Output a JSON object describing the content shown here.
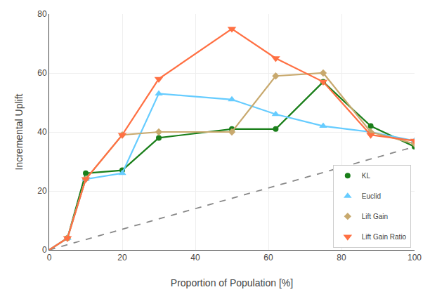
{
  "chart_data": {
    "type": "line",
    "xlabel": "Proportion of Population [%]",
    "ylabel": "Incremental Uplift",
    "xlim": [
      0,
      100
    ],
    "ylim": [
      0,
      80
    ],
    "xticks": [
      0,
      20,
      40,
      60,
      80,
      100
    ],
    "yticks": [
      0,
      20,
      40,
      60,
      80
    ],
    "grid": true,
    "legend": "lower right",
    "series": [
      {
        "color": "#888888",
        "line_style": "dashed",
        "x": [
          0,
          100
        ],
        "values": [
          0,
          35
        ]
      },
      {
        "name": "KL",
        "color": "#1a7f1a",
        "marker": "circle",
        "x": [
          0,
          5,
          10,
          20,
          30,
          50,
          62,
          75,
          88,
          100
        ],
        "values": [
          0,
          4,
          26,
          27,
          38,
          41,
          41,
          57,
          42,
          35
        ]
      },
      {
        "name": "Euclid",
        "color": "#66ccff",
        "marker": "triangle-up",
        "x": [
          0,
          5,
          10,
          20,
          30,
          50,
          62,
          75,
          88,
          100
        ],
        "values": [
          0,
          4,
          24,
          26,
          53,
          51,
          46,
          42,
          40,
          37
        ]
      },
      {
        "name": "Lift Gain",
        "color": "#c8a96e",
        "marker": "diamond",
        "x": [
          0,
          5,
          10,
          20,
          30,
          50,
          62,
          75,
          88,
          100
        ],
        "values": [
          0,
          4,
          24,
          39,
          40,
          40,
          59,
          60,
          40,
          36
        ]
      },
      {
        "name": "Lift Gain Ratio",
        "color": "#ff7043",
        "marker": "triangle-down",
        "x": [
          0,
          5,
          10,
          20,
          30,
          50,
          62,
          75,
          88,
          100
        ],
        "values": [
          0,
          4,
          24,
          39,
          58,
          75,
          65,
          57,
          39,
          37
        ]
      }
    ]
  }
}
